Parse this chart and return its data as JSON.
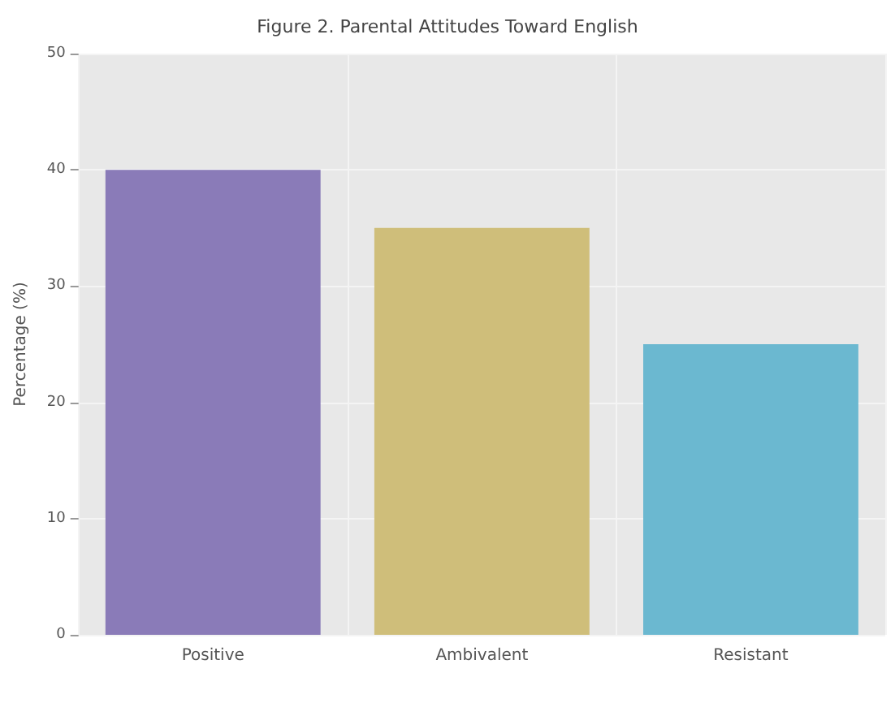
{
  "chart_data": {
    "type": "bar",
    "title": "Figure 2. Parental Attitudes Toward English",
    "ylabel": "Percentage (%)",
    "categories": [
      "Positive",
      "Ambivalent",
      "Resistant"
    ],
    "values": [
      40,
      35,
      25
    ],
    "colors": [
      "#8a7bb8",
      "#cfbe7a",
      "#6bb8d0"
    ],
    "ylim": [
      0,
      50
    ],
    "yticks": [
      0,
      10,
      20,
      30,
      40,
      50
    ],
    "grid": true
  }
}
